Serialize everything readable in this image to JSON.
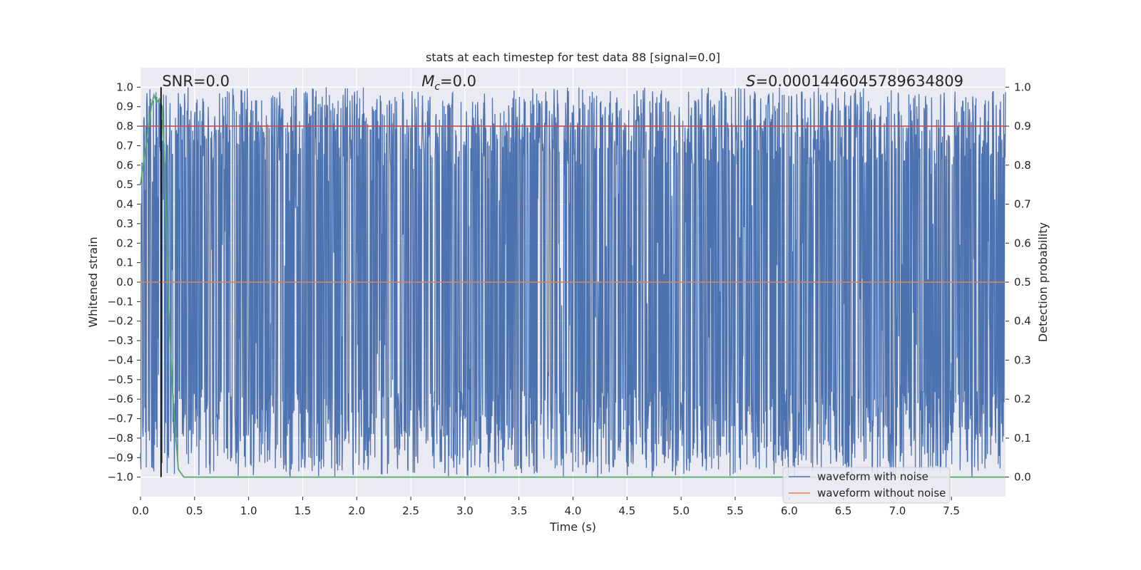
{
  "chart_data": {
    "type": "line",
    "title": "stats at each timestep for test data 88 [signal=0.0]",
    "xlabel": "Time (s)",
    "ylabel": "Whitened strain",
    "y2label": "Detection probability",
    "xlim": [
      0,
      8.0
    ],
    "ylim": [
      -1.1,
      1.1
    ],
    "y2lim": [
      -0.05,
      1.05
    ],
    "x_ticks": [
      "0.0",
      "0.5",
      "1.0",
      "1.5",
      "2.0",
      "2.5",
      "3.0",
      "3.5",
      "4.0",
      "4.5",
      "5.0",
      "5.5",
      "6.0",
      "6.5",
      "7.0",
      "7.5"
    ],
    "y_ticks": [
      "1.0",
      "0.9",
      "0.8",
      "0.7",
      "0.6",
      "0.5",
      "0.4",
      "0.3",
      "0.2",
      "0.1",
      "0.0",
      "−0.1",
      "−0.2",
      "−0.3",
      "−0.4",
      "−0.5",
      "−0.6",
      "−0.7",
      "−0.8",
      "−0.9",
      "−1.0"
    ],
    "y2_ticks": [
      "1.0",
      "0.9",
      "0.8",
      "0.7",
      "0.6",
      "0.5",
      "0.4",
      "0.3",
      "0.2",
      "0.1",
      "0.0"
    ],
    "grid": true,
    "legend_position": "lower-right",
    "annotations": {
      "snr": "SNR=0.0",
      "mc_symbol": "M",
      "mc_subscript": "c",
      "mc_value": "=0.0",
      "s_symbol": "S",
      "s_value": "=0.0001446045789634809"
    },
    "series": [
      {
        "name": "waveform with noise",
        "color": "#4c72b0",
        "description_values": "dense noise oscillating between -1.0 and 1.0 over 0–8 s"
      },
      {
        "name": "waveform without noise",
        "color": "#dd8452",
        "x": [
          0,
          8.0
        ],
        "y": [
          0.0,
          0.0
        ]
      },
      {
        "name": "",
        "axis": "right",
        "color": "#55a868",
        "x": [
          0.0,
          0.05,
          0.1,
          0.125,
          0.15,
          0.175,
          0.2,
          0.225,
          0.25,
          0.3,
          0.35,
          0.4,
          8.0
        ],
        "y": [
          0.75,
          0.85,
          0.95,
          0.98,
          0.96,
          0.97,
          0.95,
          0.8,
          0.5,
          0.2,
          0.02,
          0.0,
          0.0
        ]
      },
      {
        "name": "",
        "axis": "right",
        "color": "#c44e52",
        "x": [
          0,
          8.0
        ],
        "y": [
          0.9,
          0.9
        ]
      }
    ],
    "vline": {
      "x": 0.19,
      "color": "#000000"
    }
  },
  "colors": {
    "plot_background": "#eaeaf2",
    "grid": "#ffffff",
    "noise": "#4c72b0",
    "clean": "#dd8452",
    "probability": "#55a868",
    "threshold": "#c44e52"
  }
}
